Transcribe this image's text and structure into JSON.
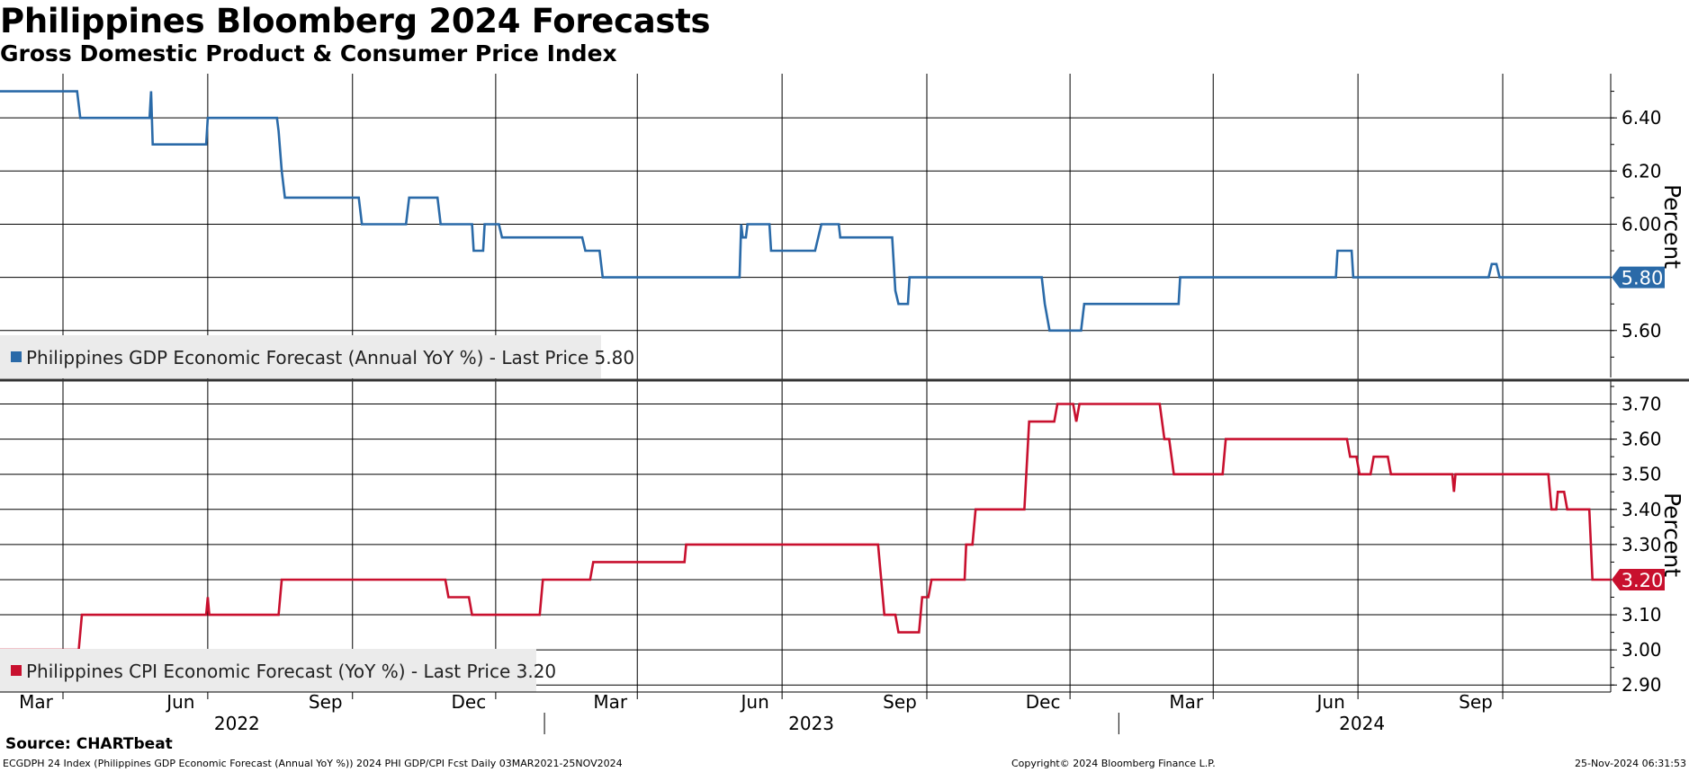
{
  "title": "Philippines Bloomberg 2024 Forecasts",
  "subtitle": "Gross Domestic Product & Consumer Price Index",
  "source": "Source: CHARTbeat",
  "footer": {
    "left": "ECGDPH 24 Index (Philippines GDP Economic Forecast (Annual YoY %)) 2024 PHI GDP/CPI Fcst  Daily 03MAR2021-25NOV2024",
    "center": "Copyright© 2024 Bloomberg Finance L.P.",
    "right": "25-Nov-2024 06:31:53"
  },
  "colors": {
    "gdp": "#2a6aa8",
    "cpi": "#c8102e",
    "grid": "#000000",
    "legend_bg": "#ebebeb"
  },
  "chart_data": {
    "type": "line",
    "x_axis": {
      "month_ticks": [
        {
          "label": "Mar",
          "date": "2022-03-01"
        },
        {
          "label": "Jun",
          "date": "2022-06-01"
        },
        {
          "label": "Sep",
          "date": "2022-09-01"
        },
        {
          "label": "Dec",
          "date": "2022-12-01"
        },
        {
          "label": "Mar",
          "date": "2023-03-01"
        },
        {
          "label": "Jun",
          "date": "2023-06-01"
        },
        {
          "label": "Sep",
          "date": "2023-09-01"
        },
        {
          "label": "Dec",
          "date": "2023-12-01"
        },
        {
          "label": "Mar",
          "date": "2024-03-01"
        },
        {
          "label": "Jun",
          "date": "2024-06-01"
        },
        {
          "label": "Sep",
          "date": "2024-09-01"
        }
      ],
      "years": [
        "2022",
        "2023",
        "2024"
      ]
    },
    "panels": [
      {
        "name": "Philippines GDP Economic Forecast (Annual YoY %)",
        "legend": "Philippines GDP Economic Forecast (Annual YoY %) - Last Price 5.80",
        "ylabel": "Percent",
        "ylim": [
          5.42,
          6.6
        ],
        "yticks": [
          "5.60",
          "5.80",
          "6.00",
          "6.20",
          "6.40"
        ],
        "last_value": "5.80",
        "color": "#2a6aa8",
        "points": [
          [
            "2021-12-25",
            6.5
          ],
          [
            "2022-03-10",
            6.5
          ],
          [
            "2022-03-12",
            6.4
          ],
          [
            "2022-04-25",
            6.4
          ],
          [
            "2022-04-26",
            6.5
          ],
          [
            "2022-04-27",
            6.3
          ],
          [
            "2022-05-31",
            6.3
          ],
          [
            "2022-06-01",
            6.4
          ],
          [
            "2022-07-15",
            6.4
          ],
          [
            "2022-07-16",
            6.35
          ],
          [
            "2022-07-18",
            6.2
          ],
          [
            "2022-07-20",
            6.1
          ],
          [
            "2022-09-05",
            6.1
          ],
          [
            "2022-09-07",
            6.0
          ],
          [
            "2022-10-05",
            6.0
          ],
          [
            "2022-10-07",
            6.1
          ],
          [
            "2022-10-25",
            6.1
          ],
          [
            "2022-10-27",
            6.0
          ],
          [
            "2022-11-16",
            6.0
          ],
          [
            "2022-11-17",
            5.9
          ],
          [
            "2022-11-23",
            5.9
          ],
          [
            "2022-11-24",
            6.0
          ],
          [
            "2022-12-03",
            6.0
          ],
          [
            "2022-12-05",
            5.95
          ],
          [
            "2023-01-25",
            5.95
          ],
          [
            "2023-01-27",
            5.9
          ],
          [
            "2023-02-05",
            5.9
          ],
          [
            "2023-02-07",
            5.8
          ],
          [
            "2023-05-05",
            5.8
          ],
          [
            "2023-05-06",
            6.0
          ],
          [
            "2023-05-07",
            5.95
          ],
          [
            "2023-05-09",
            5.95
          ],
          [
            "2023-05-10",
            6.0
          ],
          [
            "2023-05-24",
            6.0
          ],
          [
            "2023-05-25",
            5.9
          ],
          [
            "2023-06-22",
            5.9
          ],
          [
            "2023-06-24",
            5.95
          ],
          [
            "2023-06-26",
            6.0
          ],
          [
            "2023-07-07",
            6.0
          ],
          [
            "2023-07-08",
            5.95
          ],
          [
            "2023-08-10",
            5.95
          ],
          [
            "2023-08-12",
            5.75
          ],
          [
            "2023-08-14",
            5.7
          ],
          [
            "2023-08-20",
            5.7
          ],
          [
            "2023-08-21",
            5.8
          ],
          [
            "2023-11-13",
            5.8
          ],
          [
            "2023-11-15",
            5.7
          ],
          [
            "2023-11-18",
            5.6
          ],
          [
            "2023-12-08",
            5.6
          ],
          [
            "2023-12-10",
            5.7
          ],
          [
            "2024-02-08",
            5.7
          ],
          [
            "2024-02-09",
            5.8
          ],
          [
            "2024-05-18",
            5.8
          ],
          [
            "2024-05-19",
            5.9
          ],
          [
            "2024-05-28",
            5.9
          ],
          [
            "2024-05-29",
            5.8
          ],
          [
            "2024-08-23",
            5.8
          ],
          [
            "2024-08-25",
            5.85
          ],
          [
            "2024-08-28",
            5.85
          ],
          [
            "2024-08-30",
            5.8
          ],
          [
            "2024-11-25",
            5.8
          ]
        ]
      },
      {
        "name": "Philippines CPI Economic Forecast (YoY %)",
        "legend": "Philippines CPI Economic Forecast (YoY %) - Last Price 3.20",
        "ylabel": "Percent",
        "ylim": [
          2.875,
          3.75
        ],
        "yticks": [
          "2.90",
          "3.00",
          "3.10",
          "3.20",
          "3.30",
          "3.40",
          "3.50",
          "3.60",
          "3.70"
        ],
        "last_value": "3.20",
        "color": "#c8102e",
        "points": [
          [
            "2021-12-25",
            3.0
          ],
          [
            "2022-03-11",
            3.0
          ],
          [
            "2022-03-13",
            3.1
          ],
          [
            "2022-05-31",
            3.1
          ],
          [
            "2022-06-01",
            3.15
          ],
          [
            "2022-06-02",
            3.1
          ],
          [
            "2022-07-16",
            3.1
          ],
          [
            "2022-07-18",
            3.2
          ],
          [
            "2022-10-30",
            3.2
          ],
          [
            "2022-11-01",
            3.15
          ],
          [
            "2022-11-14",
            3.15
          ],
          [
            "2022-11-16",
            3.1
          ],
          [
            "2022-12-29",
            3.1
          ],
          [
            "2022-12-31",
            3.2
          ],
          [
            "2023-01-30",
            3.2
          ],
          [
            "2023-02-01",
            3.25
          ],
          [
            "2023-03-31",
            3.25
          ],
          [
            "2023-04-01",
            3.3
          ],
          [
            "2023-08-01",
            3.3
          ],
          [
            "2023-08-03",
            3.2
          ],
          [
            "2023-08-05",
            3.1
          ],
          [
            "2023-08-12",
            3.1
          ],
          [
            "2023-08-14",
            3.05
          ],
          [
            "2023-08-27",
            3.05
          ],
          [
            "2023-08-29",
            3.15
          ],
          [
            "2023-09-02",
            3.15
          ],
          [
            "2023-09-04",
            3.2
          ],
          [
            "2023-09-25",
            3.2
          ],
          [
            "2023-09-26",
            3.3
          ],
          [
            "2023-09-30",
            3.3
          ],
          [
            "2023-10-02",
            3.4
          ],
          [
            "2023-11-02",
            3.4
          ],
          [
            "2023-11-05",
            3.65
          ],
          [
            "2023-11-21",
            3.65
          ],
          [
            "2023-11-23",
            3.7
          ],
          [
            "2023-12-03",
            3.7
          ],
          [
            "2023-12-05",
            3.65
          ],
          [
            "2023-12-07",
            3.7
          ],
          [
            "2024-01-27",
            3.7
          ],
          [
            "2024-01-30",
            3.6
          ],
          [
            "2024-02-02",
            3.6
          ],
          [
            "2024-02-05",
            3.5
          ],
          [
            "2024-03-07",
            3.5
          ],
          [
            "2024-03-09",
            3.6
          ],
          [
            "2024-05-25",
            3.6
          ],
          [
            "2024-05-27",
            3.55
          ],
          [
            "2024-05-31",
            3.55
          ],
          [
            "2024-06-02",
            3.5
          ],
          [
            "2024-06-09",
            3.5
          ],
          [
            "2024-06-11",
            3.55
          ],
          [
            "2024-06-20",
            3.55
          ],
          [
            "2024-06-22",
            3.5
          ],
          [
            "2024-07-31",
            3.5
          ],
          [
            "2024-08-01",
            3.45
          ],
          [
            "2024-08-02",
            3.5
          ],
          [
            "2024-09-30",
            3.5
          ],
          [
            "2024-10-02",
            3.4
          ],
          [
            "2024-10-05",
            3.4
          ],
          [
            "2024-10-06",
            3.45
          ],
          [
            "2024-10-10",
            3.45
          ],
          [
            "2024-10-12",
            3.4
          ],
          [
            "2024-10-26",
            3.4
          ],
          [
            "2024-10-28",
            3.2
          ],
          [
            "2024-11-25",
            3.2
          ]
        ]
      }
    ]
  }
}
